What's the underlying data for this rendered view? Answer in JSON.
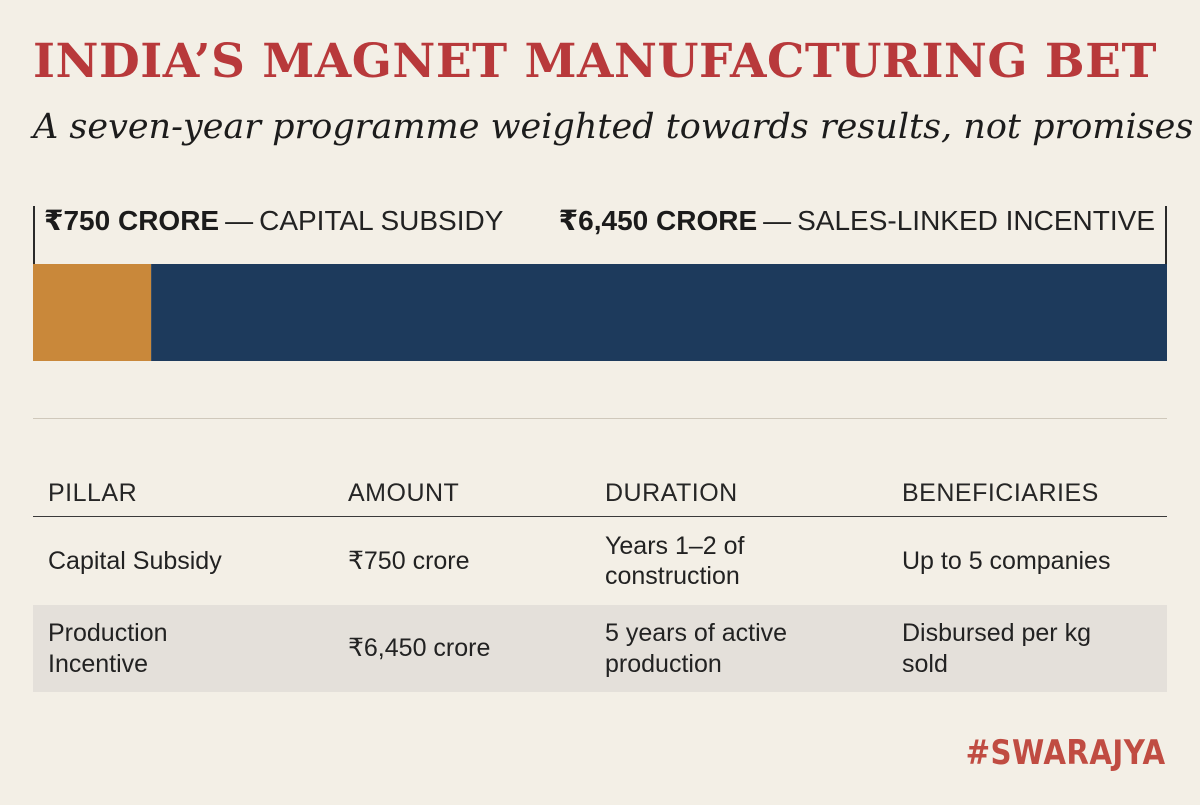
{
  "header": {
    "title": "INDIA’S MAGNET MANUFACTURING BET",
    "subtitle": "A seven-year programme weighted towards results, not promises"
  },
  "chart_data": {
    "type": "bar",
    "orientation": "horizontal-stacked",
    "unit": "₹ crore",
    "series": [
      {
        "name": "CAPITAL SUBSIDY",
        "value": 750,
        "value_label": "₹750 CRORE",
        "color": "#c9883a"
      },
      {
        "name": "SALES-LINKED INCENTIVE",
        "value": 6450,
        "value_label": "₹6,450 CRORE",
        "color": "#1d3a5c"
      }
    ],
    "dash": "—"
  },
  "table": {
    "headers": [
      "PILLAR",
      "AMOUNT",
      "DURATION",
      "BENEFICIARIES"
    ],
    "rows": [
      [
        "Capital Subsidy",
        "₹750 crore",
        "Years 1–2 of construction",
        "Up to 5 companies"
      ],
      [
        "Production Incentive",
        "₹6,450 crore",
        "5 years of active production",
        "Disbursed per kg sold"
      ]
    ]
  },
  "brand": "#SWARAJYA"
}
